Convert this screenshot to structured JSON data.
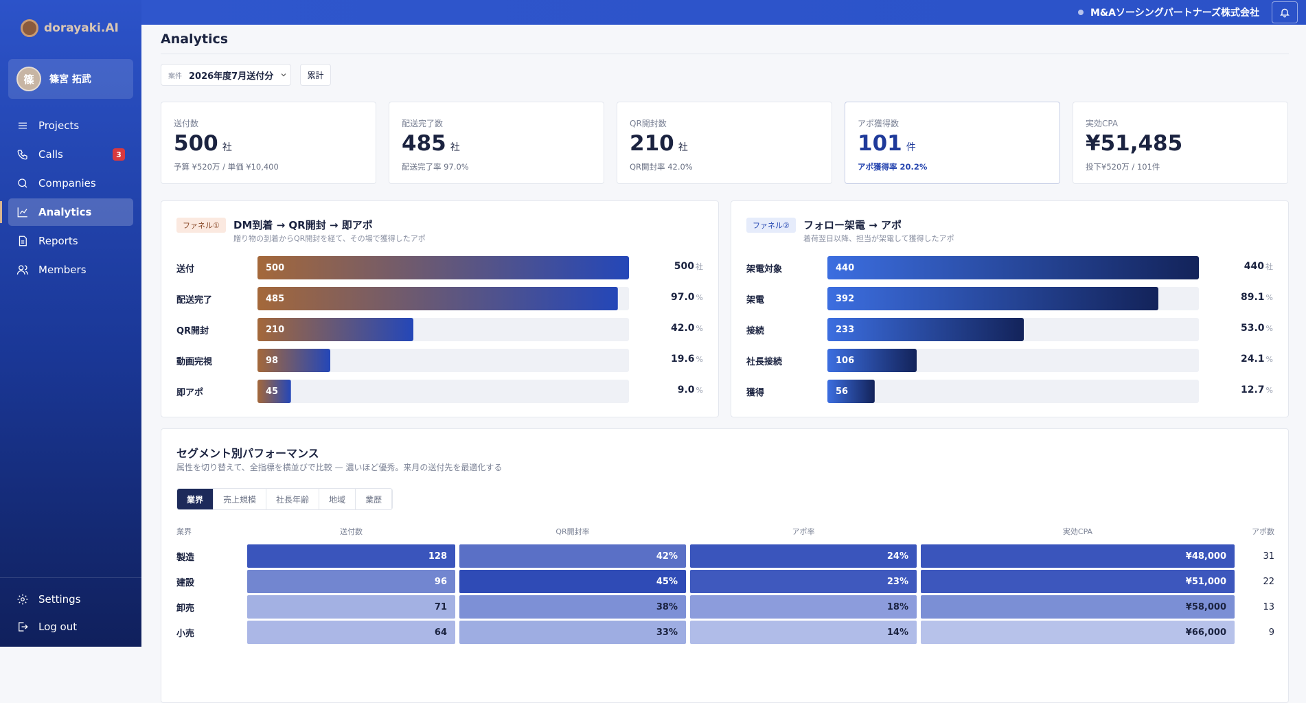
{
  "sidebar": {
    "brand": "dorayaki.AI",
    "user": {
      "avatar": "篠",
      "name": "篠宮 拓武"
    },
    "nav": [
      {
        "label": "Projects"
      },
      {
        "label": "Calls",
        "badge": "3"
      },
      {
        "label": "Companies"
      },
      {
        "label": "Analytics",
        "active": true
      },
      {
        "label": "Reports"
      },
      {
        "label": "Members"
      }
    ],
    "footer": [
      {
        "label": "Settings"
      },
      {
        "label": "Log out"
      }
    ]
  },
  "topbar": {
    "company": "M&Aソーシングパートナーズ株式会社"
  },
  "header": {
    "title": "Analytics",
    "filter_label": "案件",
    "filter_value": "2026年度7月送付分",
    "button": "累計"
  },
  "kpis": [
    {
      "label": "送付数",
      "value": "500",
      "unit": "社",
      "note": "予算 ¥520万 / 単価 ¥10,400"
    },
    {
      "label": "配送完了数",
      "value": "485",
      "unit": "社",
      "note": "配送完了率 97.0%"
    },
    {
      "label": "QR開封数",
      "value": "210",
      "unit": "社",
      "note": "QR開封率 42.0%"
    },
    {
      "label": "アポ獲得数",
      "value": "101",
      "unit": "件",
      "note": "アポ獲得率 20.2%",
      "highlight": true
    },
    {
      "label": "実効CPA",
      "value": "¥51,485",
      "note": "投下¥520万 / 101件"
    }
  ],
  "funnels": [
    {
      "tag": "ファネル①",
      "title": "DM到着 → QR開封 → 即アポ",
      "subtitle": "贈り物の到着からQR開封を経て、その場で獲得したアポ",
      "rows": [
        {
          "label": "送付",
          "value": 500,
          "rate": "500",
          "unit": "社"
        },
        {
          "label": "配送完了",
          "value": 485,
          "rate": "97.0",
          "unit": "%"
        },
        {
          "label": "QR開封",
          "value": 210,
          "rate": "42.0",
          "unit": "%"
        },
        {
          "label": "動画完視",
          "value": 98,
          "rate": "19.6",
          "unit": "%"
        },
        {
          "label": "即アポ",
          "value": 45,
          "rate": "9.0",
          "unit": "%"
        }
      ]
    },
    {
      "tag": "ファネル②",
      "title": "フォロー架電 → アポ",
      "subtitle": "着荷翌日以降、担当が架電して獲得したアポ",
      "rows": [
        {
          "label": "架電対象",
          "value": 440,
          "rate": "440",
          "unit": "社"
        },
        {
          "label": "架電",
          "value": 392,
          "rate": "89.1",
          "unit": "%"
        },
        {
          "label": "接続",
          "value": 233,
          "rate": "53.0",
          "unit": "%"
        },
        {
          "label": "社長接続",
          "value": 106,
          "rate": "24.1",
          "unit": "%"
        },
        {
          "label": "獲得",
          "value": 56,
          "rate": "12.7",
          "unit": "%"
        }
      ]
    }
  ],
  "segments": {
    "title": "セグメント別パフォーマンス",
    "subtitle": "属性を切り替えて、全指標を横並びで比較 — 濃いほど優秀。来月の送付先を最適化する",
    "tabs": [
      {
        "label": "業界",
        "active": true
      },
      {
        "label": "売上規模"
      },
      {
        "label": "社長年齢"
      },
      {
        "label": "地域"
      },
      {
        "label": "業歴"
      }
    ],
    "columns": [
      "業界",
      "送付数",
      "QR開封率",
      "アポ率",
      "実効CPA",
      "アポ数"
    ],
    "rows": [
      [
        "製造",
        "128",
        "42%",
        "24%",
        "¥48,000",
        "31"
      ],
      [
        "建設",
        "96",
        "45%",
        "23%",
        "¥51,000",
        "22"
      ],
      [
        "卸売",
        "71",
        "38%",
        "18%",
        "¥58,000",
        "13"
      ],
      [
        "小売",
        "64",
        "33%",
        "14%",
        "¥66,000",
        "9"
      ]
    ]
  }
}
